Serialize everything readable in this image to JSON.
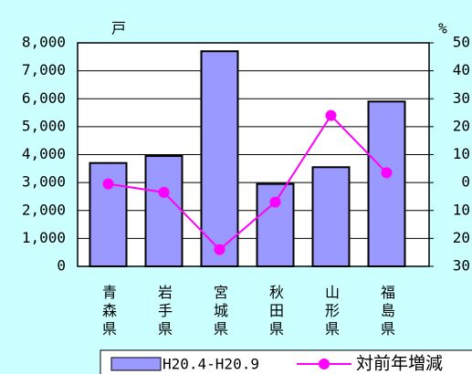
{
  "chart_data": {
    "type": "bar_line",
    "y_unit": "戸",
    "y2_unit": "%",
    "categories": [
      "青森県",
      "岩手県",
      "宮城県",
      "秋田県",
      "山形県",
      "福島県"
    ],
    "series": [
      {
        "name": "H20.4-H20.9",
        "type": "bar",
        "color": "#9999ff",
        "values": [
          3700,
          3950,
          7700,
          2950,
          3550,
          5900
        ]
      },
      {
        "name": "対前年増減",
        "type": "line",
        "axis": "y2",
        "color": "#ff00ff",
        "values": [
          -0.5,
          -3.5,
          -24,
          -7,
          24,
          3.5
        ]
      }
    ],
    "ylim": [
      0,
      8000
    ],
    "yticks": [
      {
        "value": 0,
        "label": "0"
      },
      {
        "value": 1000,
        "label": "1,000"
      },
      {
        "value": 2000,
        "label": "2,000"
      },
      {
        "value": 3000,
        "label": "3,000"
      },
      {
        "value": 4000,
        "label": "4,000"
      },
      {
        "value": 5000,
        "label": "5,000"
      },
      {
        "value": 6000,
        "label": "6,000"
      },
      {
        "value": 7000,
        "label": "7,000"
      },
      {
        "value": 8000,
        "label": "8,000"
      }
    ],
    "y2lim": [
      -30,
      50
    ],
    "y2ticks": [
      {
        "value": -30,
        "label": "30"
      },
      {
        "value": -20,
        "label": "20"
      },
      {
        "value": -10,
        "label": "10"
      },
      0,
      10,
      20,
      30,
      40,
      50
    ],
    "grid": true
  }
}
